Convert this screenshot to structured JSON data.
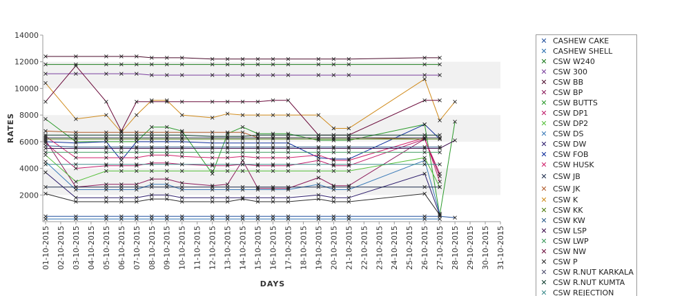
{
  "chart_data": {
    "type": "line",
    "xlabel": "DAYS",
    "ylabel": "RATES",
    "ylim": [
      0,
      14000
    ],
    "yticks": [
      2000,
      4000,
      6000,
      8000,
      10000,
      12000,
      14000
    ],
    "grid": "alternating horizontal bands",
    "legend_position": "right",
    "categories": [
      "01-10-2015",
      "02-10-2015",
      "03-10-2015",
      "04-10-2015",
      "05-10-2015",
      "06-10-2015",
      "07-10-2015",
      "08-10-2015",
      "09-10-2015",
      "10-10-2015",
      "11-10-2015",
      "12-10-2015",
      "13-10-2015",
      "14-10-2015",
      "15-10-2015",
      "16-10-2015",
      "17-10-2015",
      "18-10-2015",
      "19-10-2015",
      "20-10-2015",
      "21-10-2015",
      "22-10-2015",
      "23-10-2015",
      "24-10-2015",
      "25-10-2015",
      "26-10-2015",
      "27-10-2015",
      "28-10-2015",
      "29-10-2015",
      "30-10-2015",
      "31-10-2015"
    ],
    "series": [
      {
        "name": "CASHEW CAKE",
        "color": "#1f4e9c",
        "values": [
          400,
          null,
          400,
          null,
          400,
          400,
          400,
          400,
          400,
          400,
          null,
          400,
          400,
          400,
          400,
          400,
          400,
          null,
          400,
          400,
          400,
          null,
          null,
          null,
          null,
          400,
          400,
          300,
          null,
          null,
          null
        ]
      },
      {
        "name": "CASHEW SHELL",
        "color": "#2a6fb0",
        "values": [
          200,
          null,
          200,
          null,
          200,
          200,
          200,
          200,
          200,
          200,
          null,
          200,
          200,
          200,
          200,
          200,
          200,
          null,
          200,
          200,
          200,
          null,
          null,
          null,
          null,
          200,
          200,
          null,
          null,
          null,
          null
        ]
      },
      {
        "name": "CSW  W240",
        "color": "#1a7a1a",
        "values": [
          11800,
          null,
          11800,
          null,
          11800,
          11800,
          11800,
          11800,
          11800,
          11800,
          null,
          11800,
          11800,
          11800,
          11800,
          11800,
          11800,
          null,
          11800,
          11800,
          11800,
          null,
          null,
          null,
          null,
          11800,
          11800,
          null,
          null,
          null,
          null
        ]
      },
      {
        "name": "CSW 300",
        "color": "#7a3e9d",
        "values": [
          11100,
          null,
          11100,
          null,
          11100,
          11100,
          11100,
          11000,
          11000,
          11000,
          null,
          11000,
          11000,
          11000,
          11000,
          11000,
          11000,
          null,
          11000,
          11000,
          11000,
          null,
          null,
          null,
          null,
          11000,
          11000,
          null,
          null,
          null,
          null
        ]
      },
      {
        "name": "CSW BB",
        "color": "#4a0a2a",
        "values": [
          12400,
          null,
          12400,
          null,
          12400,
          12400,
          12400,
          12300,
          12300,
          12300,
          null,
          12200,
          12200,
          12200,
          12200,
          12200,
          12200,
          null,
          12200,
          12200,
          12200,
          null,
          null,
          null,
          null,
          12300,
          12300,
          null,
          null,
          null,
          null
        ]
      },
      {
        "name": "CSW BP",
        "color": "#8b1a5a",
        "values": [
          6100,
          null,
          2600,
          null,
          2800,
          2800,
          2800,
          3200,
          3200,
          2900,
          null,
          2700,
          2800,
          4600,
          2500,
          2500,
          2500,
          null,
          3300,
          2700,
          2700,
          null,
          null,
          null,
          null,
          6200,
          3400,
          null,
          null,
          null,
          null
        ]
      },
      {
        "name": "CSW BUTTS",
        "color": "#2a9a2a",
        "values": [
          7700,
          null,
          6000,
          null,
          6000,
          6000,
          6000,
          7100,
          7100,
          6800,
          null,
          3600,
          6600,
          7100,
          6600,
          6600,
          6600,
          null,
          6100,
          6100,
          6100,
          null,
          null,
          null,
          null,
          7300,
          500,
          7500,
          null,
          null,
          null
        ]
      },
      {
        "name": "CSW DP1",
        "color": "#c01a6a",
        "values": [
          5900,
          null,
          4000,
          null,
          4200,
          4200,
          4200,
          4400,
          4400,
          4300,
          null,
          4200,
          4200,
          4300,
          4200,
          4200,
          4200,
          null,
          4600,
          4200,
          4200,
          null,
          null,
          null,
          null,
          6200,
          3600,
          null,
          null,
          null,
          null
        ]
      },
      {
        "name": "CSW DP2",
        "color": "#55c03a",
        "values": [
          5000,
          null,
          3000,
          null,
          3800,
          3800,
          3800,
          3800,
          3800,
          3800,
          null,
          3800,
          3800,
          3800,
          3800,
          3800,
          3800,
          null,
          3800,
          3800,
          3800,
          null,
          null,
          null,
          null,
          4800,
          2600,
          null,
          null,
          null,
          null
        ]
      },
      {
        "name": "CSW DS",
        "color": "#3a7ab8",
        "values": [
          4500,
          null,
          2400,
          null,
          2400,
          2400,
          2400,
          2800,
          2800,
          2400,
          null,
          2400,
          2400,
          2400,
          2400,
          2400,
          2400,
          null,
          2800,
          2400,
          2400,
          null,
          null,
          null,
          null,
          4600,
          600,
          null,
          null,
          null,
          null
        ]
      },
      {
        "name": "CSW DW",
        "color": "#2a1a6a",
        "values": [
          3700,
          null,
          1800,
          null,
          1800,
          1800,
          1800,
          2000,
          2000,
          1800,
          null,
          1800,
          1800,
          1800,
          1800,
          1800,
          1800,
          null,
          2000,
          1800,
          1800,
          null,
          null,
          null,
          null,
          3600,
          500,
          null,
          null,
          null,
          null
        ]
      },
      {
        "name": "CSW FOB",
        "color": "#0a2a9a",
        "values": [
          6000,
          null,
          5900,
          null,
          6000,
          4600,
          6000,
          6000,
          6000,
          6000,
          null,
          5900,
          5900,
          5900,
          5900,
          5900,
          5900,
          null,
          4800,
          4700,
          4700,
          null,
          null,
          null,
          null,
          7300,
          6200,
          null,
          null,
          null,
          null
        ]
      },
      {
        "name": "CSW HUSK",
        "color": "#d0206a",
        "values": [
          6400,
          null,
          4800,
          null,
          4800,
          4800,
          4800,
          5000,
          5000,
          4900,
          null,
          4800,
          4800,
          4900,
          4800,
          4800,
          4800,
          null,
          5000,
          4600,
          4600,
          null,
          null,
          null,
          null,
          6300,
          3000,
          null,
          null,
          null,
          null
        ]
      },
      {
        "name": "CSW JB",
        "color": "#1a2a4a",
        "values": [
          2600,
          null,
          2600,
          null,
          2600,
          2600,
          2600,
          2600,
          2600,
          2600,
          null,
          2600,
          2600,
          2600,
          2600,
          2600,
          2600,
          null,
          2600,
          2600,
          2600,
          null,
          null,
          null,
          null,
          2600,
          2600,
          null,
          null,
          null,
          null
        ]
      },
      {
        "name": "CSW JK",
        "color": "#b05a2a",
        "values": [
          6800,
          null,
          6700,
          null,
          6700,
          6700,
          6700,
          6700,
          6700,
          6700,
          null,
          6700,
          6700,
          6700,
          6300,
          6300,
          6300,
          null,
          6300,
          6300,
          6300,
          null,
          null,
          null,
          null,
          6200,
          6200,
          null,
          null,
          null,
          null
        ]
      },
      {
        "name": "CSW K",
        "color": "#d08a1a",
        "values": [
          10400,
          null,
          7700,
          null,
          8000,
          6700,
          8000,
          9100,
          9100,
          8000,
          null,
          7800,
          8100,
          8000,
          8000,
          8000,
          8000,
          null,
          8000,
          7000,
          7000,
          null,
          null,
          null,
          null,
          10700,
          7600,
          9000,
          null,
          null,
          null
        ]
      },
      {
        "name": "CSW KK",
        "color": "#4a7a0a",
        "values": [
          6200,
          null,
          6200,
          null,
          6200,
          6200,
          6200,
          6200,
          6200,
          6200,
          null,
          6200,
          6200,
          6200,
          6200,
          6200,
          6200,
          null,
          6200,
          6200,
          6200,
          null,
          null,
          null,
          null,
          6200,
          6200,
          null,
          null,
          null,
          null
        ]
      },
      {
        "name": "CSW KW",
        "color": "#2a5a8a",
        "values": [
          5700,
          null,
          5600,
          null,
          5600,
          5600,
          5600,
          5600,
          5600,
          5600,
          null,
          5600,
          5600,
          5600,
          5600,
          5600,
          5600,
          null,
          5600,
          5600,
          5600,
          null,
          null,
          null,
          null,
          5600,
          5600,
          null,
          null,
          null,
          null
        ]
      },
      {
        "name": "CSW LSP",
        "color": "#3a0a4a",
        "values": [
          5500,
          null,
          5500,
          null,
          5500,
          5500,
          5500,
          5500,
          5500,
          5500,
          null,
          5500,
          5500,
          5500,
          5500,
          5500,
          5500,
          null,
          5500,
          5500,
          5500,
          null,
          null,
          null,
          null,
          5500,
          5500,
          6100,
          null,
          null,
          null
        ]
      },
      {
        "name": "CSW LWP",
        "color": "#3a9a5a",
        "values": [
          5200,
          null,
          5200,
          null,
          5200,
          5200,
          5200,
          5200,
          5200,
          5200,
          null,
          5200,
          5200,
          5200,
          5200,
          5200,
          5200,
          null,
          5200,
          5200,
          5200,
          null,
          null,
          null,
          null,
          5200,
          5200,
          null,
          null,
          null,
          null
        ]
      },
      {
        "name": "CSW NW",
        "color": "#6a0a3a",
        "values": [
          9000,
          null,
          11700,
          null,
          9000,
          6800,
          9000,
          9000,
          9000,
          9000,
          null,
          9000,
          9000,
          9000,
          9000,
          9100,
          9100,
          null,
          6500,
          6500,
          6500,
          null,
          null,
          null,
          null,
          9100,
          9100,
          null,
          null,
          null,
          null
        ]
      },
      {
        "name": "CSW P",
        "color": "#2a2a2a",
        "values": [
          2100,
          null,
          1500,
          null,
          1500,
          1500,
          1500,
          1700,
          1700,
          1500,
          null,
          1500,
          1500,
          1700,
          1500,
          1500,
          1500,
          null,
          1700,
          1500,
          1500,
          null,
          null,
          null,
          null,
          2100,
          500,
          null,
          null,
          null,
          null
        ]
      },
      {
        "name": "CSW R.NUT KARKALA",
        "color": "#4a4a6a",
        "values": [
          6300,
          null,
          6300,
          null,
          6300,
          6300,
          6300,
          6300,
          6300,
          6300,
          null,
          6300,
          6300,
          6300,
          6300,
          6300,
          6300,
          null,
          6300,
          6300,
          6300,
          null,
          null,
          null,
          null,
          6300,
          6300,
          null,
          null,
          null,
          null
        ]
      },
      {
        "name": "CSW R.NUT KUMTA",
        "color": "#0a3a2a",
        "values": [
          6500,
          null,
          6500,
          null,
          6500,
          6500,
          6500,
          6500,
          6500,
          6500,
          null,
          6400,
          6400,
          6400,
          6500,
          6500,
          6500,
          null,
          6500,
          6500,
          6500,
          null,
          null,
          null,
          null,
          6500,
          6500,
          null,
          null,
          null,
          null
        ]
      },
      {
        "name": "CSW REJECTION",
        "color": "#3a8a8a",
        "values": [
          4300,
          null,
          4300,
          null,
          4300,
          4300,
          4300,
          4300,
          4300,
          4300,
          null,
          4300,
          4300,
          4300,
          4300,
          4300,
          4300,
          null,
          4300,
          4300,
          4300,
          null,
          null,
          null,
          null,
          4300,
          4300,
          null,
          null,
          null,
          null
        ]
      }
    ]
  }
}
